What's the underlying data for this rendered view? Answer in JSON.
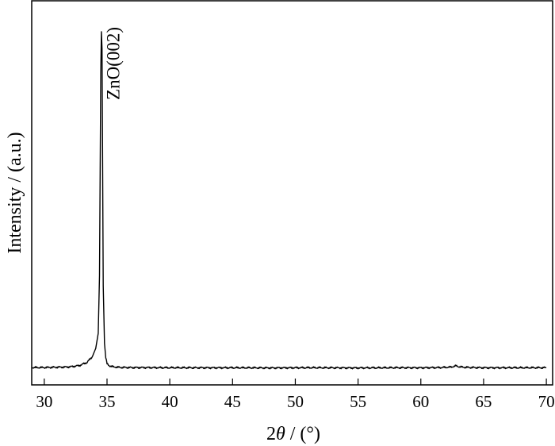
{
  "chart_data": {
    "type": "line",
    "title": "",
    "xlabel_prefix": "2",
    "xlabel_symbol": "θ",
    "xlabel_suffix": " / (°)",
    "ylabel": "Intensity / (a.u.)",
    "xlim": [
      29,
      70.5
    ],
    "ylim": [
      0,
      100
    ],
    "xticks": [
      30,
      35,
      40,
      45,
      50,
      55,
      60,
      65,
      70
    ],
    "yticks_labeled": false,
    "grid": false,
    "legend": "none",
    "line_color": "#000000",
    "series": [
      {
        "x": [
          29.0,
          30.0,
          31.0,
          32.0,
          32.8,
          33.4,
          33.8,
          34.1,
          34.3,
          34.4,
          34.45,
          34.5,
          34.55,
          34.6,
          34.65,
          34.7,
          34.8,
          34.9,
          35.0,
          35.2,
          35.5,
          36.0,
          37.0,
          38.0,
          40.0,
          42.0,
          45.0,
          48.0,
          50.0,
          52.0,
          55.0,
          58.0,
          60.0,
          61.5,
          62.3,
          62.6,
          62.8,
          63.1,
          63.6,
          65.0,
          67.0,
          70.0
        ],
        "y": [
          0.9,
          0.9,
          1.0,
          1.1,
          1.5,
          2.4,
          4.0,
          6.5,
          11.0,
          28.0,
          58.0,
          88.0,
          100.0,
          95.0,
          62.0,
          25.0,
          8.0,
          3.8,
          2.0,
          1.4,
          1.1,
          0.95,
          0.9,
          0.9,
          0.85,
          0.85,
          0.85,
          0.8,
          0.85,
          0.85,
          0.8,
          0.85,
          0.85,
          0.9,
          1.0,
          1.2,
          1.4,
          1.1,
          0.95,
          0.85,
          0.85,
          0.85
        ]
      }
    ],
    "annotations": [
      {
        "text": "ZnO(002)",
        "x": 35.6,
        "y": 100
      }
    ]
  }
}
